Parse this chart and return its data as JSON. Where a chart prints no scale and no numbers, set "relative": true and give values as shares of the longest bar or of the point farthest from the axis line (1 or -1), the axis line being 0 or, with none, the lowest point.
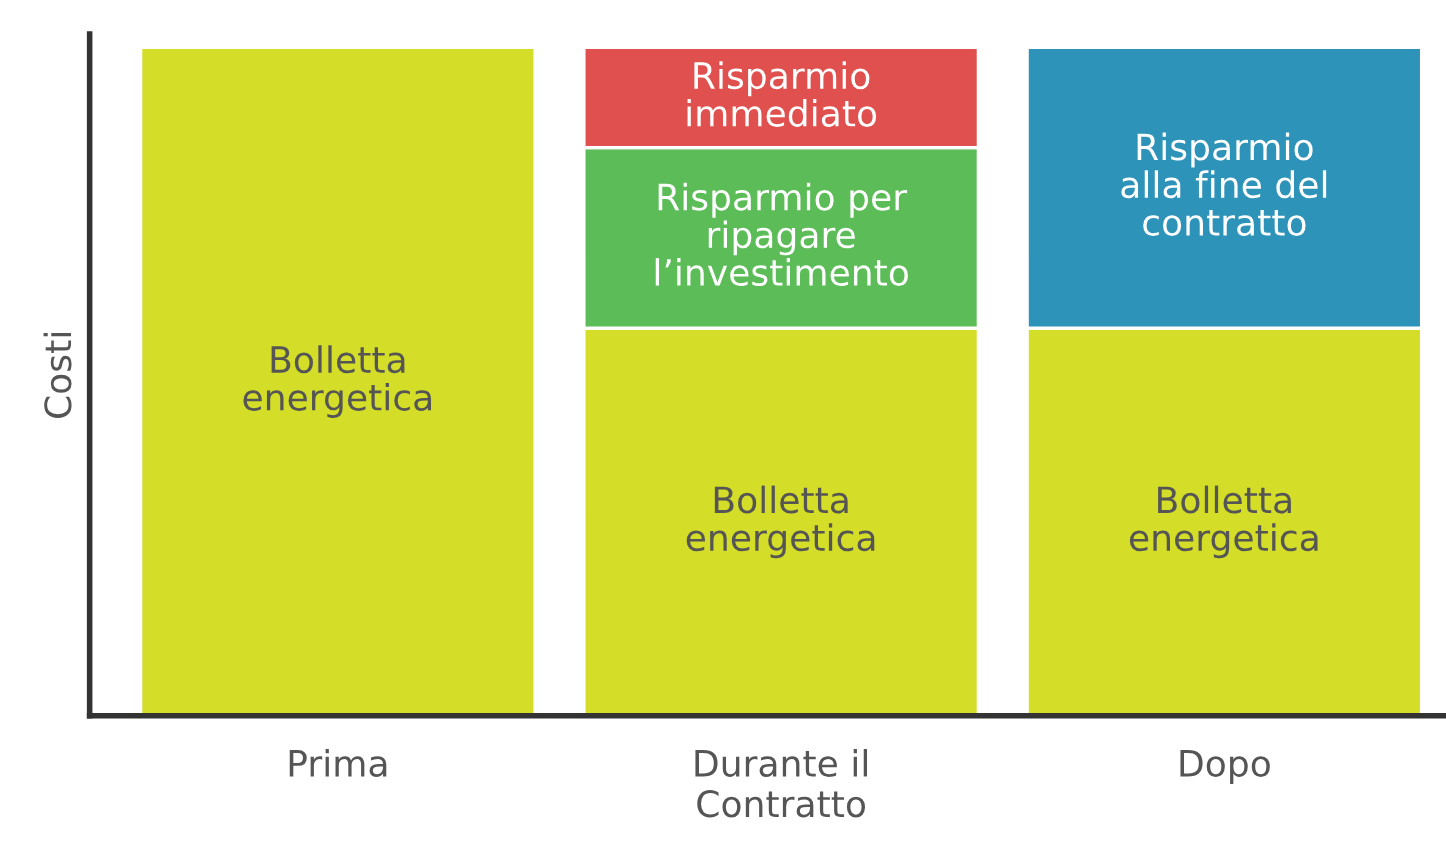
{
  "chart_data": {
    "type": "bar",
    "stacked": true,
    "relative": true,
    "ylabel": "Costi",
    "categories": [
      "Prima",
      "Durante il\nContratto",
      "Dopo"
    ],
    "series": [
      {
        "name": "Bolletta\nenergetica",
        "color": "#d4dd27",
        "values": [
          1,
          0.58,
          0.58
        ]
      },
      {
        "name": "Risparmio per\nripagare\nl’investimento",
        "color": "#5cbd58",
        "values": [
          null,
          0.27,
          null
        ]
      },
      {
        "name": "Risparmio\nimmediato",
        "color": "#e0504e",
        "values": [
          null,
          0.15,
          null
        ]
      },
      {
        "name": "Risparmio\nalla fine del\ncontratto",
        "color": "#2e93b8",
        "values": [
          null,
          null,
          0.42
        ]
      }
    ],
    "grid": false,
    "legend": false
  }
}
